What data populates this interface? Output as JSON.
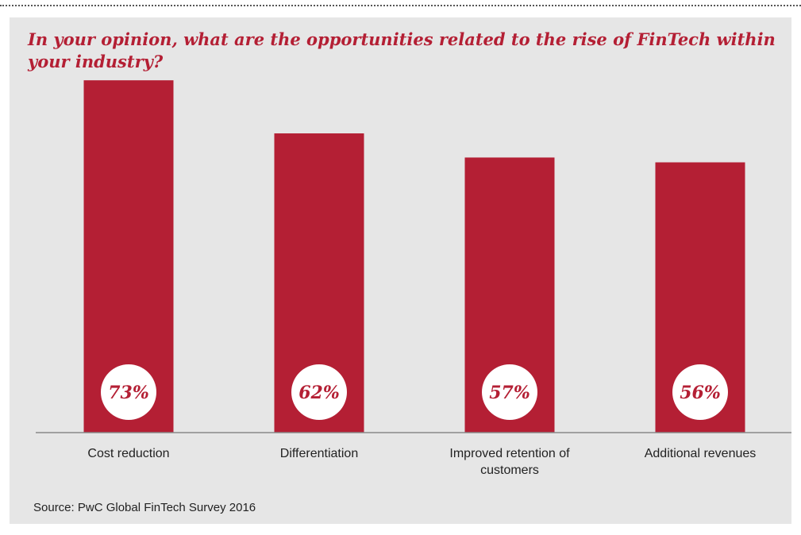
{
  "chart_data": {
    "type": "bar",
    "title": "In your opinion, what are the opportunities related to the rise of FinTech within your industry?",
    "categories": [
      "Cost reduction",
      "Differentiation",
      "Improved retention of customers",
      "Additional revenues"
    ],
    "category_lines": [
      [
        "Cost reduction"
      ],
      [
        "Differentiation"
      ],
      [
        "Improved retention of",
        "customers"
      ],
      [
        "Additional revenues"
      ]
    ],
    "values": [
      73,
      62,
      57,
      56
    ],
    "value_labels": [
      "73%",
      "62%",
      "57%",
      "56%"
    ],
    "unit": "%",
    "ylim": [
      0,
      100
    ],
    "grid": false,
    "bar_color": "#b41f34",
    "source": "Source: PwC Global FinTech Survey 2016"
  },
  "colors": {
    "accent": "#b41f34",
    "panel": "#e6e6e6",
    "text": "#222222"
  }
}
